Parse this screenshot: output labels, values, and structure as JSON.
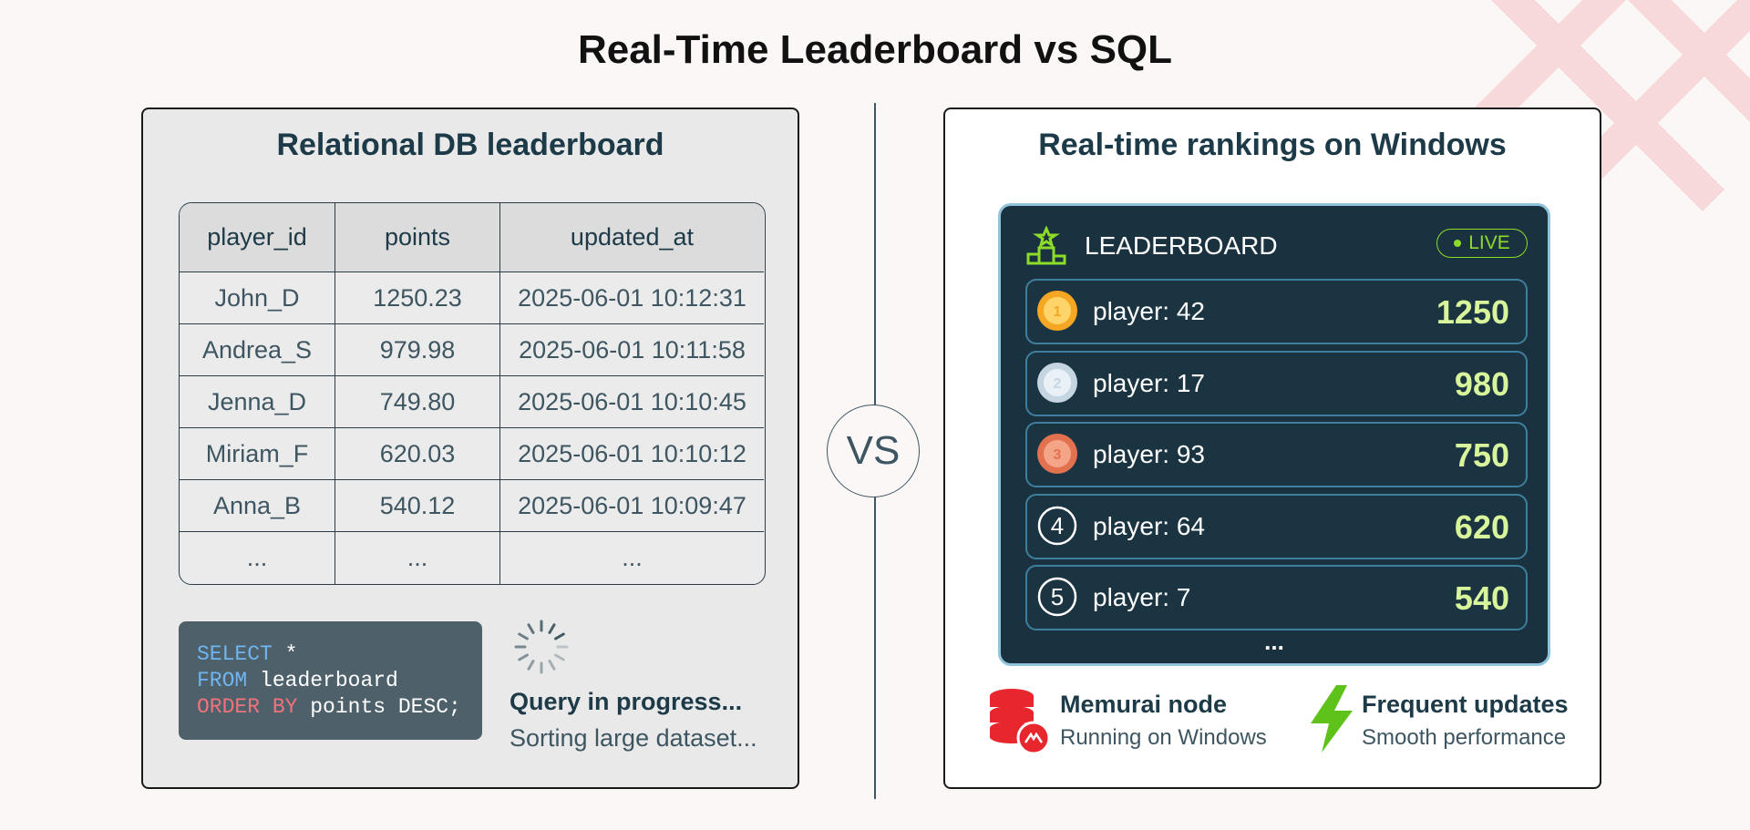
{
  "title": "Real-Time Leaderboard vs SQL",
  "left": {
    "heading": "Relational DB leaderboard",
    "table": {
      "columns": [
        "player_id",
        "points",
        "updated_at"
      ],
      "rows": [
        [
          "John_D",
          "1250.23",
          "2025-06-01 10:12:31"
        ],
        [
          "Andrea_S",
          "979.98",
          "2025-06-01 10:11:58"
        ],
        [
          "Jenna_D",
          "749.80",
          "2025-06-01 10:10:45"
        ],
        [
          "Miriam_F",
          "620.03",
          "2025-06-01 10:10:12"
        ],
        [
          "Anna_B",
          "540.12",
          "2025-06-01 10:09:47"
        ],
        [
          "...",
          "...",
          "..."
        ]
      ]
    },
    "query": {
      "lines": [
        {
          "keyword": "SELECT",
          "text": "*"
        },
        {
          "keyword": "FROM",
          "text": "leaderboard"
        },
        {
          "keyword": "ORDER BY",
          "text": "points DESC;"
        }
      ]
    },
    "status": {
      "title": "Query in progress...",
      "subtitle": "Sorting large dataset..."
    }
  },
  "vs": "VS",
  "right": {
    "heading": "Real-time rankings on Windows",
    "board": {
      "title": "LEADERBOARD",
      "badge": "LIVE",
      "entries": [
        {
          "rank": 1,
          "player": "player: 42",
          "score": "1250"
        },
        {
          "rank": 2,
          "player": "player: 17",
          "score": "980"
        },
        {
          "rank": 3,
          "player": "player: 93",
          "score": "750"
        },
        {
          "rank": 4,
          "player": "player: 64",
          "score": "620"
        },
        {
          "rank": 5,
          "player": "player: 7",
          "score": "540"
        }
      ],
      "more": "..."
    },
    "features": [
      {
        "title": "Memurai node",
        "subtitle": "Running on Windows"
      },
      {
        "title": "Frequent updates",
        "subtitle": "Smooth performance"
      }
    ]
  }
}
